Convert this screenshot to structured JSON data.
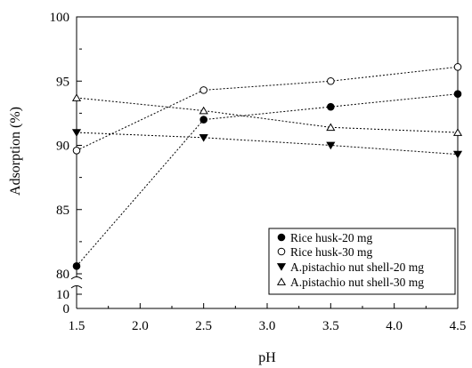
{
  "chart_data": {
    "type": "line",
    "title": "",
    "xlabel": "pH",
    "ylabel": "Adsorption (%)",
    "x": [
      1.5,
      2.5,
      3.5,
      4.5
    ],
    "xlim": [
      1.5,
      4.5
    ],
    "xticks": [
      "1.5",
      "2.0",
      "2.5",
      "3.0",
      "3.5",
      "4.0",
      "4.5"
    ],
    "ylim_upper": [
      80,
      100
    ],
    "yticks_upper": [
      "80",
      "85",
      "90",
      "95",
      "100"
    ],
    "ylim_lower": [
      0,
      10
    ],
    "yticks_lower": [
      "0",
      "10"
    ],
    "axis_break": true,
    "grid": false,
    "legend_position": "bottom-right",
    "series": [
      {
        "name": "Rice husk-20 mg",
        "marker": "filled-circle",
        "values": [
          80.6,
          92.0,
          93.0,
          94.0
        ]
      },
      {
        "name": "Rice husk-30 mg",
        "marker": "open-circle",
        "values": [
          89.6,
          94.3,
          95.0,
          96.1
        ]
      },
      {
        "name": "A.pistachio nut shell-20 mg",
        "marker": "filled-triangle-down",
        "values": [
          91.0,
          90.6,
          90.0,
          89.3
        ]
      },
      {
        "name": "A.pistachio nut shell-30 mg",
        "marker": "open-triangle-up",
        "values": [
          93.7,
          92.7,
          91.4,
          91.0
        ]
      }
    ]
  }
}
